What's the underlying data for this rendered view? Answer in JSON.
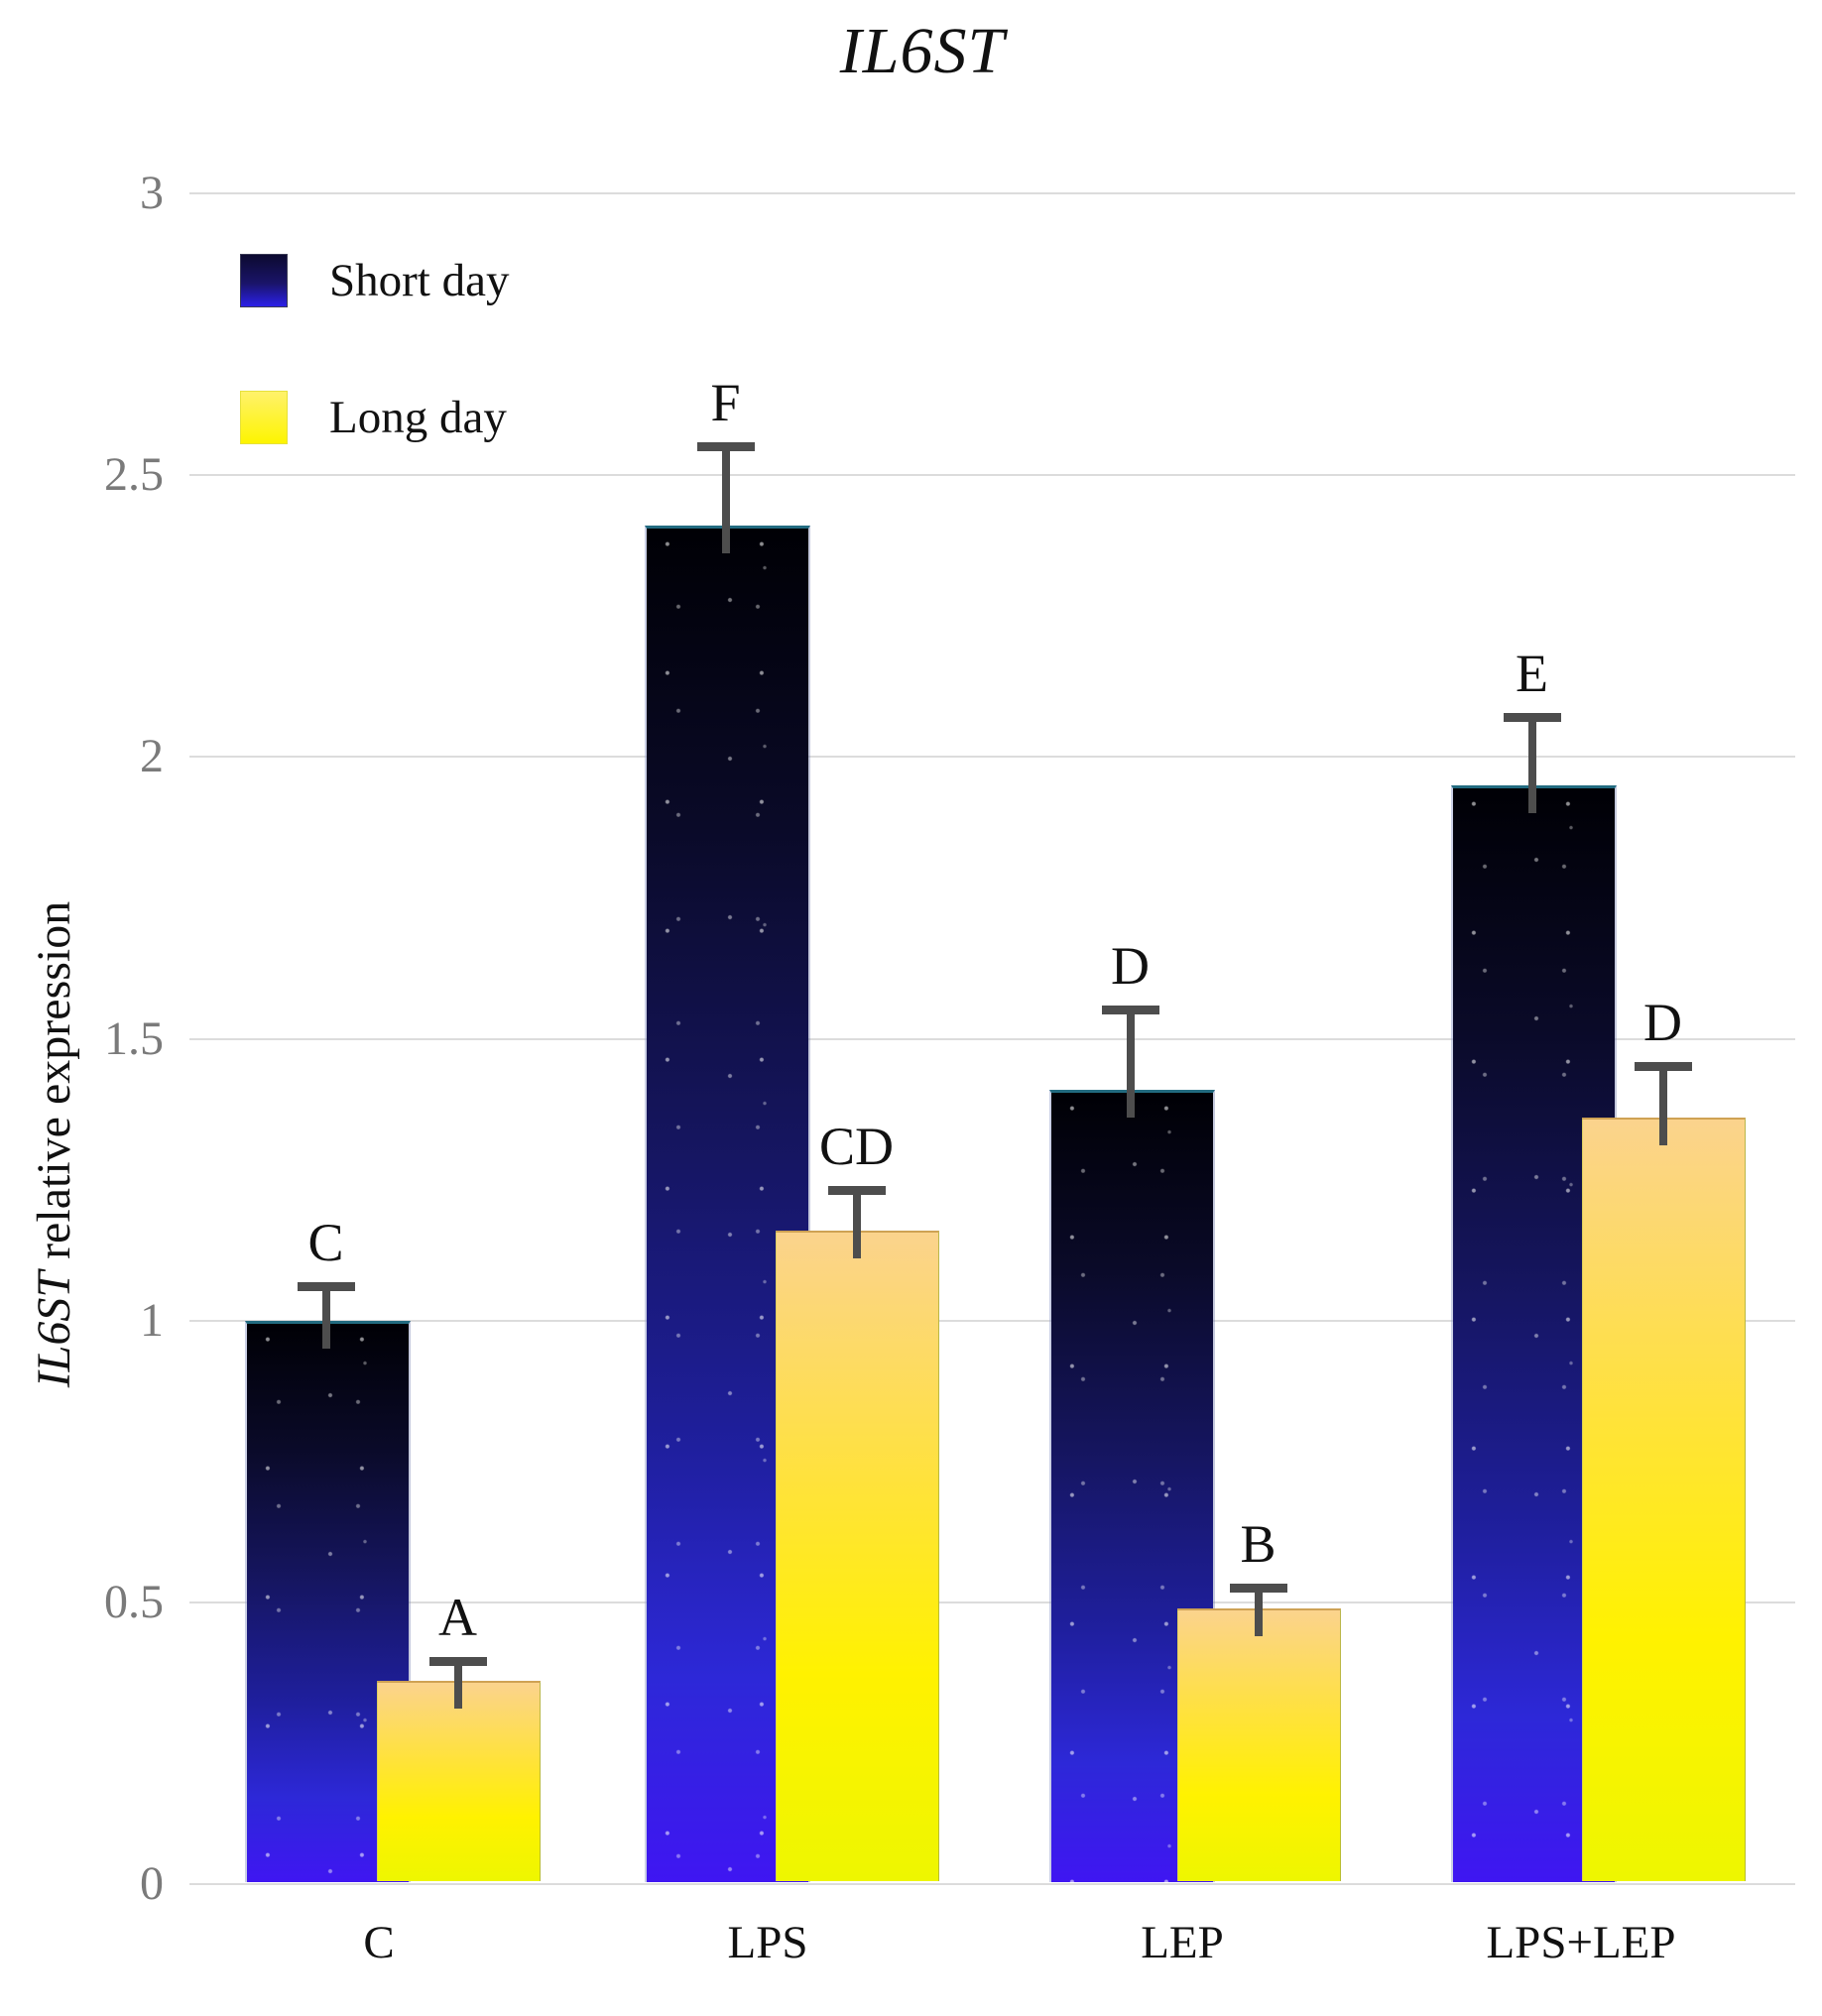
{
  "title": "IL6ST",
  "y_axis_title": {
    "gene": "IL6ST",
    "rest": " relative expression"
  },
  "legend": {
    "short_label": "Short day",
    "long_label": "Long day"
  },
  "colors": {
    "short_bar_top": "#000005",
    "short_bar_bottom": "#3f16f2",
    "long_bar_top": "#fbd38d",
    "long_bar_bottom": "#eef600",
    "gridline": "#dcdcdc",
    "error_bar": "#4d4d4d",
    "tick_label": "#7a7a7a",
    "text": "#111111"
  },
  "chart_data": {
    "type": "bar",
    "title": "IL6ST",
    "ylabel": "IL6ST relative expression",
    "xlabel": "",
    "ylim": [
      0,
      3
    ],
    "yticks": [
      0,
      0.5,
      1,
      1.5,
      2,
      2.5,
      3
    ],
    "ytick_labels": [
      "0",
      "0.5",
      "1",
      "1.5",
      "2",
      "2.5",
      "3"
    ],
    "categories": [
      "C",
      "LPS",
      "LEP",
      "LPS+LEP"
    ],
    "series": [
      {
        "name": "Short day",
        "values": [
          1.0,
          2.41,
          1.41,
          1.95
        ],
        "errors": [
          0.06,
          0.14,
          0.14,
          0.12
        ],
        "letters": [
          "C",
          "F",
          "D",
          "E"
        ]
      },
      {
        "name": "Long day",
        "values": [
          0.36,
          1.16,
          0.49,
          1.36
        ],
        "errors": [
          0.035,
          0.07,
          0.035,
          0.09
        ],
        "letters": [
          "A",
          "CD",
          "B",
          "D"
        ]
      }
    ],
    "grid": true,
    "legend_position": "upper-left"
  }
}
